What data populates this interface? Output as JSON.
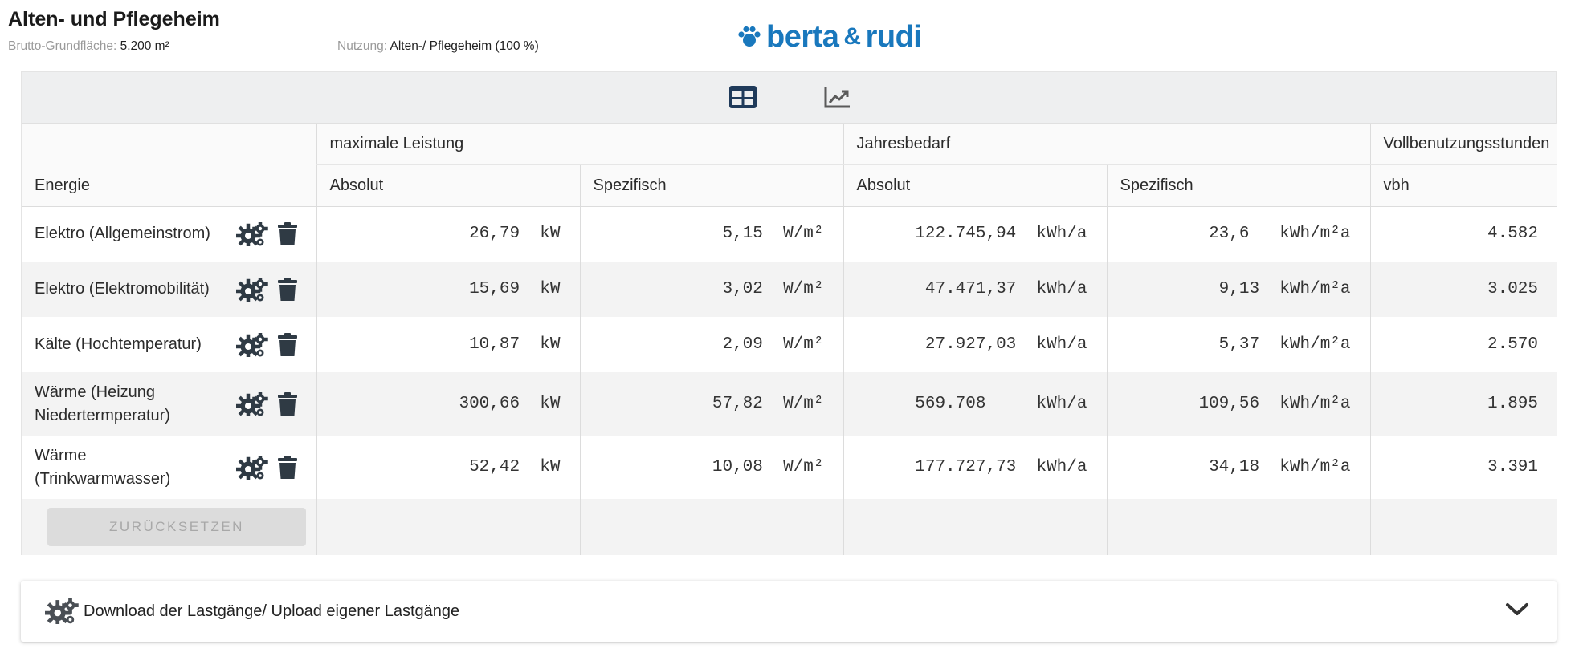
{
  "header": {
    "title": "Alten- und Pflegeheim",
    "area_label": "Brutto-Grundfläche:",
    "area_value": "5.200 m²",
    "usage_label": "Nutzung:",
    "usage_value": "Alten-/ Pflegeheim (100 %)"
  },
  "brand": {
    "part1": "berta",
    "amp": "&",
    "part2": "rudi",
    "color": "#1978bd"
  },
  "view_toggle": {
    "table_icon": "table-icon",
    "chart_icon": "chart-line-icon",
    "active_color": "#1f3a5a",
    "inactive_color": "#5a5a5a"
  },
  "table": {
    "energy_header": "Energie",
    "groups": [
      "maximale Leistung",
      "Jahresbedarf",
      "Vollbenutzungsstunden"
    ],
    "sub_headers": [
      "Absolut",
      "Spezifisch",
      "Absolut",
      "Spezifisch",
      "vbh"
    ],
    "rows": [
      {
        "name": "Elektro (Allgemeinstrom)",
        "leistung_abs": "26,79  kW",
        "leistung_spez": "5,15  W/m²",
        "bedarf_abs": "122.745,94  kWh/a",
        "bedarf_spez": "23,6   kWh/m²a",
        "vbh": "4.582"
      },
      {
        "name": "Elektro (Elektromobilität)",
        "leistung_abs": "15,69  kW",
        "leistung_spez": "3,02  W/m²",
        "bedarf_abs": "47.471,37  kWh/a",
        "bedarf_spez": "9,13  kWh/m²a",
        "vbh": "3.025"
      },
      {
        "name": "Kälte (Hochtemperatur)",
        "leistung_abs": "10,87  kW",
        "leistung_spez": "2,09  W/m²",
        "bedarf_abs": "27.927,03  kWh/a",
        "bedarf_spez": "5,37  kWh/m²a",
        "vbh": "2.570"
      },
      {
        "name": "Wärme (Heizung Niedertermperatur)",
        "leistung_abs": "300,66  kW",
        "leistung_spez": "57,82  W/m²",
        "bedarf_abs": "569.708     kWh/a",
        "bedarf_spez": "109,56  kWh/m²a",
        "vbh": "1.895"
      },
      {
        "name": "Wärme (Trinkwarmwasser)",
        "leistung_abs": "52,42  kW",
        "leistung_spez": "10,08  W/m²",
        "bedarf_abs": "177.727,73  kWh/a",
        "bedarf_spez": "34,18  kWh/m²a",
        "vbh": "3.391"
      }
    ],
    "row_icons": [
      "settings-icon",
      "trash-icon"
    ],
    "reset_label": "ZURÜCKSETZEN"
  },
  "accordion": {
    "label": "Download der Lastgänge/ Upload eigener Lastgänge",
    "icon": "settings-icon",
    "chevron": "chevron-down-icon"
  }
}
